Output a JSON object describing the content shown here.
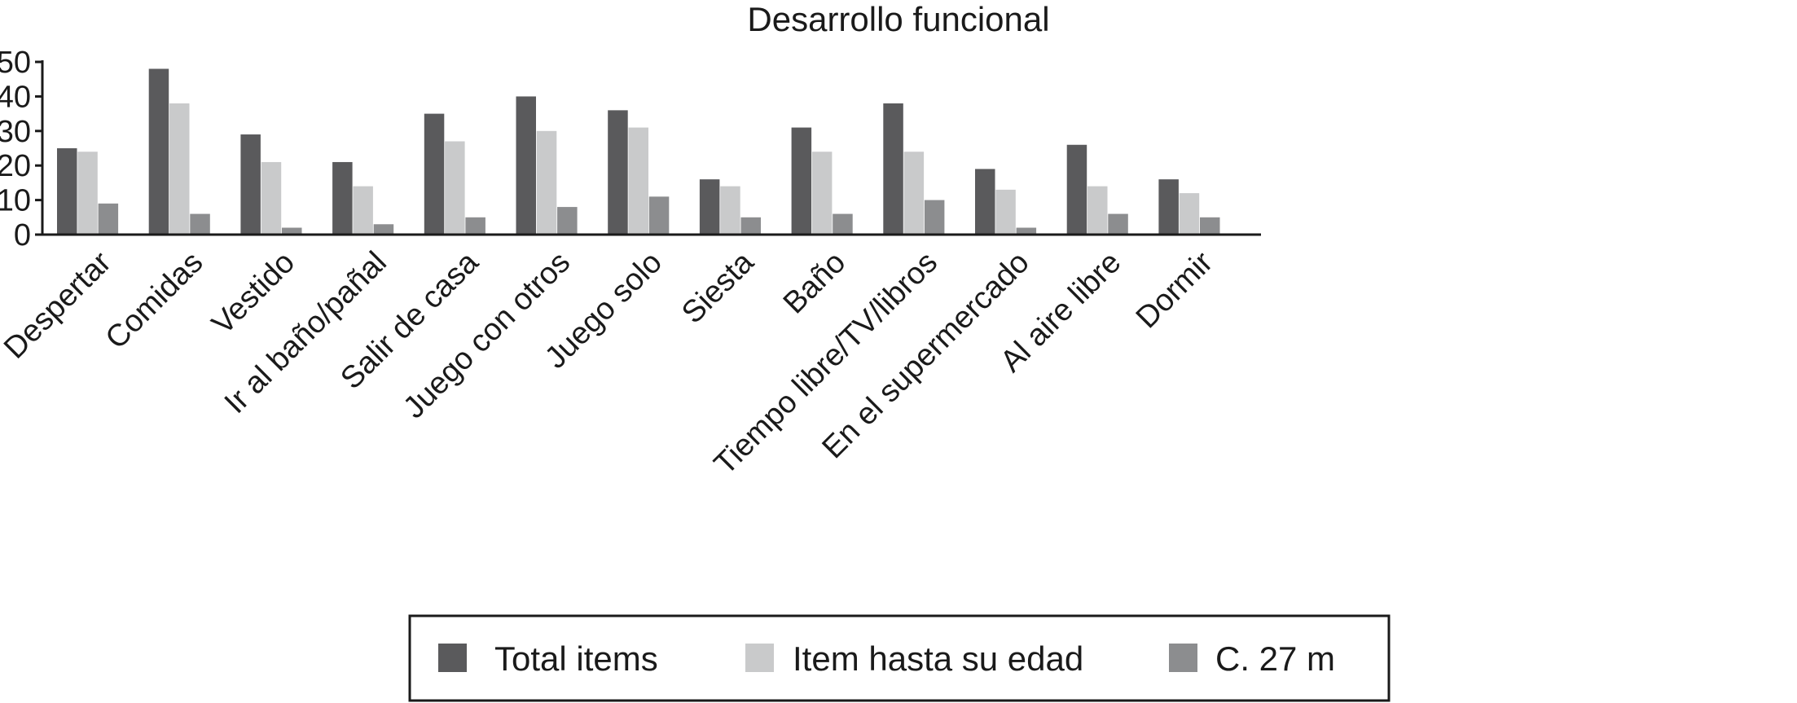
{
  "chart_data": {
    "type": "bar",
    "title": "Desarrollo funcional",
    "xlabel": "",
    "ylabel": "",
    "ylim": [
      0,
      50
    ],
    "yticks": [
      0,
      10,
      20,
      30,
      40,
      50
    ],
    "grid": false,
    "legend_position": "bottom",
    "categories": [
      "Despertar",
      "Comidas",
      "Vestido",
      "Ir al baño/pañal",
      "Salir de casa",
      "Juego con otros",
      "Juego solo",
      "Siesta",
      "Baño",
      "Tiempo libre/TV/libros",
      "En el supermercado",
      "Al aire libre",
      "Dormir"
    ],
    "series": [
      {
        "name": "Total items",
        "color": "#5a5a5c",
        "values": [
          25,
          48,
          29,
          21,
          35,
          40,
          36,
          16,
          31,
          38,
          19,
          26,
          16
        ]
      },
      {
        "name": "Item hasta su edad",
        "color": "#c9cacb",
        "values": [
          24,
          38,
          21,
          14,
          27,
          30,
          31,
          14,
          24,
          24,
          13,
          14,
          12
        ]
      },
      {
        "name": "C. 27 m",
        "color": "#8c8d8f",
        "values": [
          9,
          6,
          2,
          3,
          5,
          8,
          11,
          5,
          6,
          10,
          2,
          6,
          5
        ]
      }
    ]
  }
}
